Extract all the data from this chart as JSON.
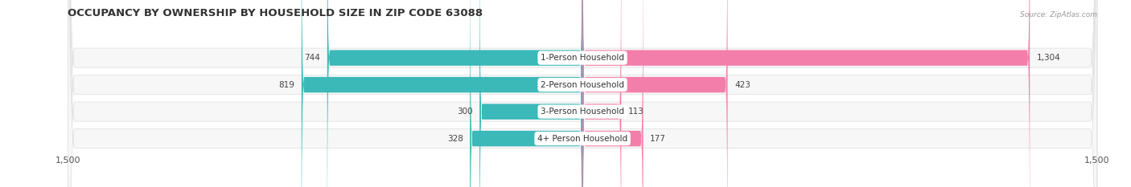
{
  "title": "OCCUPANCY BY OWNERSHIP BY HOUSEHOLD SIZE IN ZIP CODE 63088",
  "source": "Source: ZipAtlas.com",
  "categories": [
    "1-Person Household",
    "2-Person Household",
    "3-Person Household",
    "4+ Person Household"
  ],
  "owner_values": [
    744,
    819,
    300,
    328
  ],
  "renter_values": [
    1304,
    423,
    113,
    177
  ],
  "x_max": 1500,
  "x_min": -1500,
  "owner_color": "#3BB8B8",
  "renter_color": "#F47EAA",
  "background_color": "#ffffff",
  "row_bg_color": "#f0f0f0",
  "title_fontsize": 9.5,
  "label_fontsize": 7.5,
  "value_fontsize": 7.5,
  "tick_fontsize": 8,
  "legend_fontsize": 8
}
